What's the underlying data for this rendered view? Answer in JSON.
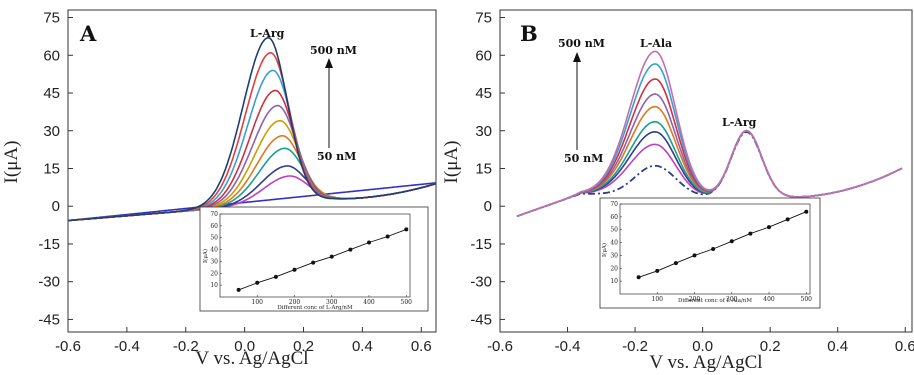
{
  "chart_data": [
    {
      "panel": "A",
      "type": "line",
      "xlabel": "V vs. Ag/AgCl",
      "ylabel": "I(μA)",
      "xlim": [
        -0.6,
        0.65
      ],
      "ylim": [
        -50,
        78
      ],
      "xticks": [
        -0.6,
        -0.4,
        -0.2,
        0.0,
        0.2,
        0.4,
        0.6
      ],
      "xtick_labels": [
        "-0.6",
        "-0.4",
        "-0.2",
        "0.0",
        "0.2",
        "0.4",
        "0.6"
      ],
      "yticks": [
        -45,
        -30,
        -15,
        0,
        15,
        30,
        45,
        60,
        75
      ],
      "ytick_labels": [
        "-45",
        "-30",
        "-15",
        "0",
        "15",
        "30",
        "45",
        "60",
        "75"
      ],
      "annotations": {
        "peak": "L-Arg",
        "high": "500 nM",
        "low": "50 nM"
      },
      "peak_potential": 0.08,
      "series_peaks": [
        12,
        16,
        23,
        28,
        34,
        40,
        46,
        54,
        61,
        67
      ],
      "colors": [
        "#c040c0",
        "#2c3e8c",
        "#18a090",
        "#e07820",
        "#c8a000",
        "#9060b0",
        "#d03040",
        "#3aa0d0",
        "#e04040",
        "#1f3f6f"
      ],
      "inset": {
        "xlabel": "Different conc of L-Arg/nM",
        "ylabel": "I(μA)",
        "xlim": [
          0,
          510
        ],
        "ylim": [
          0,
          70
        ],
        "xticks": [
          100,
          200,
          300,
          400,
          500
        ],
        "yticks": [
          10,
          20,
          30,
          40,
          50,
          60,
          70
        ],
        "x": [
          50,
          100,
          150,
          200,
          250,
          300,
          350,
          400,
          450,
          500
        ],
        "y": [
          6,
          12,
          17,
          23,
          29,
          34,
          40,
          46,
          51,
          57
        ]
      }
    },
    {
      "panel": "B",
      "type": "line",
      "xlabel": "V vs. Ag/AgCl",
      "ylabel": "I(μA)",
      "xlim": [
        -0.6,
        0.62
      ],
      "ylim": [
        -50,
        78
      ],
      "xticks": [
        -0.6,
        -0.4,
        -0.2,
        0.0,
        0.2,
        0.4,
        0.6
      ],
      "xtick_labels": [
        "-0.6",
        "-0.4",
        "-0.2",
        "0.0",
        "0.2",
        "0.4",
        "0.6"
      ],
      "yticks": [
        -45,
        -30,
        -15,
        0,
        15,
        30,
        45,
        60,
        75
      ],
      "ytick_labels": [
        "-45",
        "-30",
        "-15",
        "0",
        "15",
        "30",
        "45",
        "60",
        "75"
      ],
      "annotations": {
        "peak1": "L-Ala",
        "peak2": "L-Arg",
        "high": "500 nM",
        "low": "50 nM"
      },
      "series_peaks": [
        25,
        30,
        34,
        40,
        45,
        51,
        57,
        62
      ],
      "colors": [
        "#c040c0",
        "#2c3e8c",
        "#18a090",
        "#e07820",
        "#9060b0",
        "#d03040",
        "#3aa0d0",
        "#c070b0"
      ],
      "inset": {
        "xlabel": "Different conc of L-Ala/nM",
        "ylabel": "I(μA)",
        "xlim": [
          0,
          510
        ],
        "ylim": [
          0,
          70
        ],
        "xticks": [
          100,
          200,
          300,
          400,
          500
        ],
        "yticks": [
          10,
          20,
          30,
          40,
          50,
          60,
          70
        ],
        "x": [
          50,
          100,
          150,
          200,
          250,
          300,
          350,
          400,
          450,
          500
        ],
        "y": [
          13,
          18,
          24,
          30,
          35,
          41,
          47,
          52,
          58,
          64
        ]
      }
    }
  ]
}
